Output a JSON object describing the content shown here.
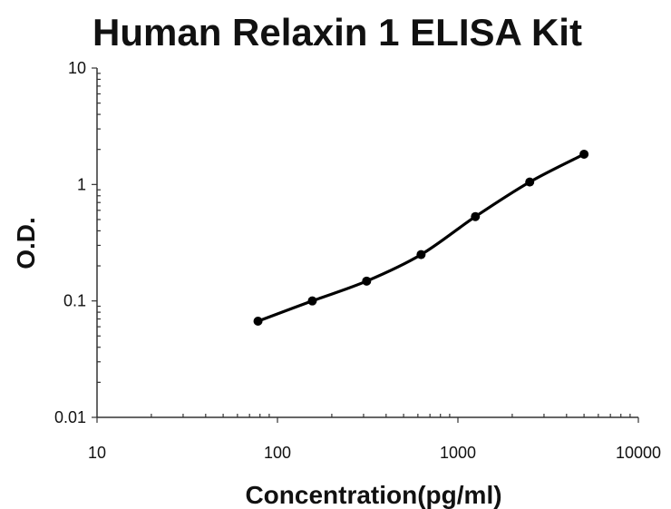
{
  "chart_data": {
    "type": "scatter",
    "title": "Human Relaxin 1 ELISA Kit",
    "xlabel": "Concentration(pg/ml)",
    "ylabel": "O.D.",
    "xscale": "log",
    "yscale": "log",
    "xlim": [
      10,
      10000
    ],
    "ylim": [
      0.01,
      10
    ],
    "x_tick_labels": [
      "10",
      "100",
      "1000",
      "10000"
    ],
    "y_tick_labels": [
      "0.01",
      "0.1",
      "1",
      "10"
    ],
    "grid": false,
    "legend": "none",
    "fit_line": true,
    "series": [
      {
        "x": [
          78,
          156,
          312,
          625,
          1250,
          2500,
          5000
        ],
        "y": [
          0.067,
          0.1,
          0.148,
          0.25,
          0.53,
          1.05,
          1.82
        ]
      }
    ],
    "colors": {
      "marker": "#000000",
      "axis": "#333333",
      "text": "#111111"
    }
  }
}
